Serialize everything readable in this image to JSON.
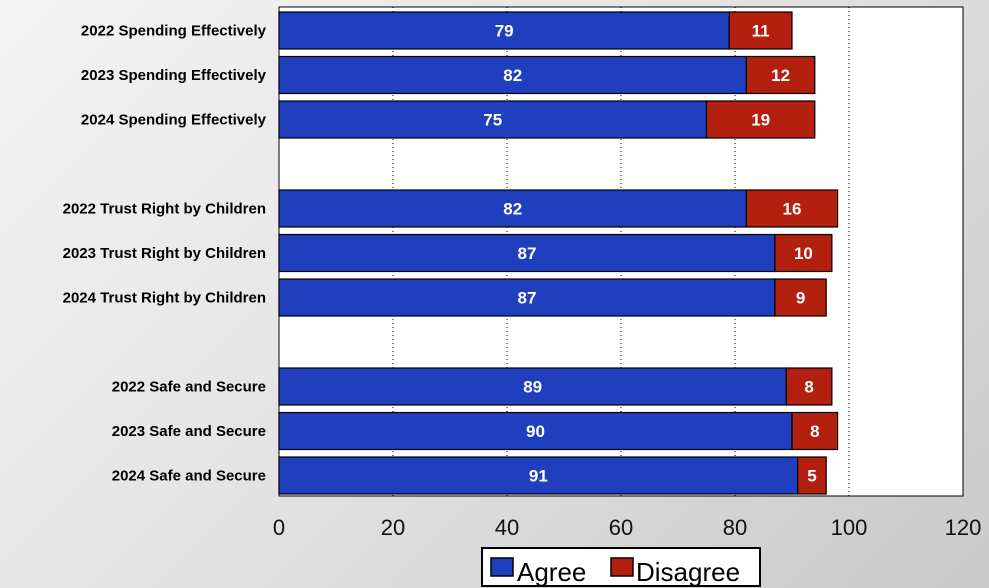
{
  "chart_data": {
    "type": "bar",
    "orientation": "horizontal",
    "stacked": true,
    "categories": [
      "2022 Spending Effectively",
      "2023 Spending Effectively",
      "2024 Spending Effectively",
      "",
      "2022 Trust Right by Children",
      "2023 Trust Right by Children",
      "2024 Trust Right by Children",
      "",
      "2022 Safe and Secure",
      "2023 Safe and Secure",
      "2024 Safe and Secure"
    ],
    "series": [
      {
        "name": "Agree",
        "color": "#1f3fbf",
        "values": [
          79,
          82,
          75,
          null,
          82,
          87,
          87,
          null,
          89,
          90,
          91
        ]
      },
      {
        "name": "Disagree",
        "color": "#b3200f",
        "values": [
          11,
          12,
          19,
          null,
          16,
          10,
          9,
          null,
          8,
          8,
          5
        ]
      }
    ],
    "xlim": [
      0,
      120
    ],
    "xticks": [
      0,
      20,
      40,
      60,
      80,
      100,
      120
    ],
    "grid": "vertical dotted",
    "legend": "bottom",
    "title": "",
    "xlabel": "",
    "ylabel": ""
  }
}
